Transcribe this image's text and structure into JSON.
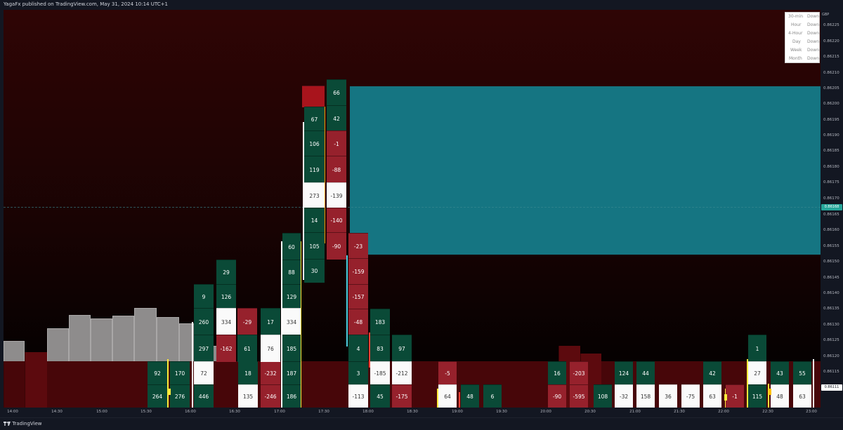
{
  "header": {
    "publisher_text": "YagaFx published on TradingView.com, May 31, 2024 10:14 UTC+1"
  },
  "footer": {
    "logo_text": "TradingView"
  },
  "price_axis": {
    "currency": "GBP",
    "labels": [
      "0.86225",
      "0.86220",
      "0.86215",
      "0.86210",
      "0.86205",
      "0.86200",
      "0.86195",
      "0.86190",
      "0.86185",
      "0.86180",
      "0.86175",
      "0.86170",
      "0.86165",
      "0.86160",
      "0.86155",
      "0.86150",
      "0.86145",
      "0.86140",
      "0.86135",
      "0.86130",
      "0.86125",
      "0.86120",
      "0.86115"
    ],
    "current_price": "0.86168",
    "last_price": "0.86111"
  },
  "time_axis": {
    "labels": [
      "14:00",
      "14:30",
      "15:00",
      "15:30",
      "16:00",
      "16:30",
      "17:00",
      "17:30",
      "18:00",
      "18:30",
      "19:00",
      "19:30",
      "20:00",
      "20:30",
      "21:00",
      "21:30",
      "22:00",
      "22:30",
      "23:00"
    ]
  },
  "trend_panel": {
    "rows": [
      {
        "timeframe": "30-min",
        "direction": "Down"
      },
      {
        "timeframe": "Hour",
        "direction": "Down"
      },
      {
        "timeframe": "4-Hour",
        "direction": "Down"
      },
      {
        "timeframe": "Day",
        "direction": "Down"
      },
      {
        "timeframe": "Week",
        "direction": "Down"
      },
      {
        "timeframe": "Month",
        "direction": "Down"
      }
    ]
  },
  "footprint_values": {
    "c1": [
      "92",
      "264"
    ],
    "c2": [
      "170",
      "276"
    ],
    "c3": [
      "9",
      "260",
      "297",
      "72",
      "446"
    ],
    "c4": [
      "29",
      "126",
      "334",
      "-162"
    ],
    "c5": [
      "18",
      "135"
    ],
    "c6": [
      "-29",
      "61"
    ],
    "c7": [
      "-232",
      "-246"
    ],
    "c8": [
      "17",
      "76"
    ],
    "c9": [
      "60",
      "88",
      "129",
      "334",
      "185",
      "187",
      "186"
    ],
    "c10": [
      "67",
      "106",
      "119",
      "273",
      "14",
      "105",
      "30"
    ],
    "c11": [
      "66",
      "42",
      "-1",
      "-88",
      "-139",
      "-140",
      "-90"
    ],
    "c12": [
      "-23",
      "-159",
      "-157",
      "-48",
      "4",
      "3",
      "-113"
    ],
    "c13": [
      "183",
      "83",
      "-185",
      "45"
    ],
    "c14": [
      "97",
      "-212",
      "-175"
    ],
    "c15": [
      "-5",
      "64"
    ],
    "c16": [
      "48"
    ],
    "c17": [
      "6"
    ],
    "c18": [
      "16",
      "-90"
    ],
    "c19": [
      "-203",
      "-595"
    ],
    "c20": [
      "108"
    ],
    "c21": [
      "124",
      "-32"
    ],
    "c22": [
      "44",
      "158"
    ],
    "c23": [
      "36"
    ],
    "c24": [
      "-75"
    ],
    "c25": [
      "42",
      "63"
    ],
    "c26": [
      "-1"
    ],
    "c27": [
      "1",
      "27",
      "115"
    ],
    "c28": [
      "43",
      "48"
    ],
    "c29": [
      "55",
      "63"
    ]
  },
  "colors": {
    "positive": "#0a4a37",
    "negative": "#96212c",
    "neutral": "#fafafa",
    "zone": "#157582",
    "current_price_badge": "#26a69a"
  }
}
